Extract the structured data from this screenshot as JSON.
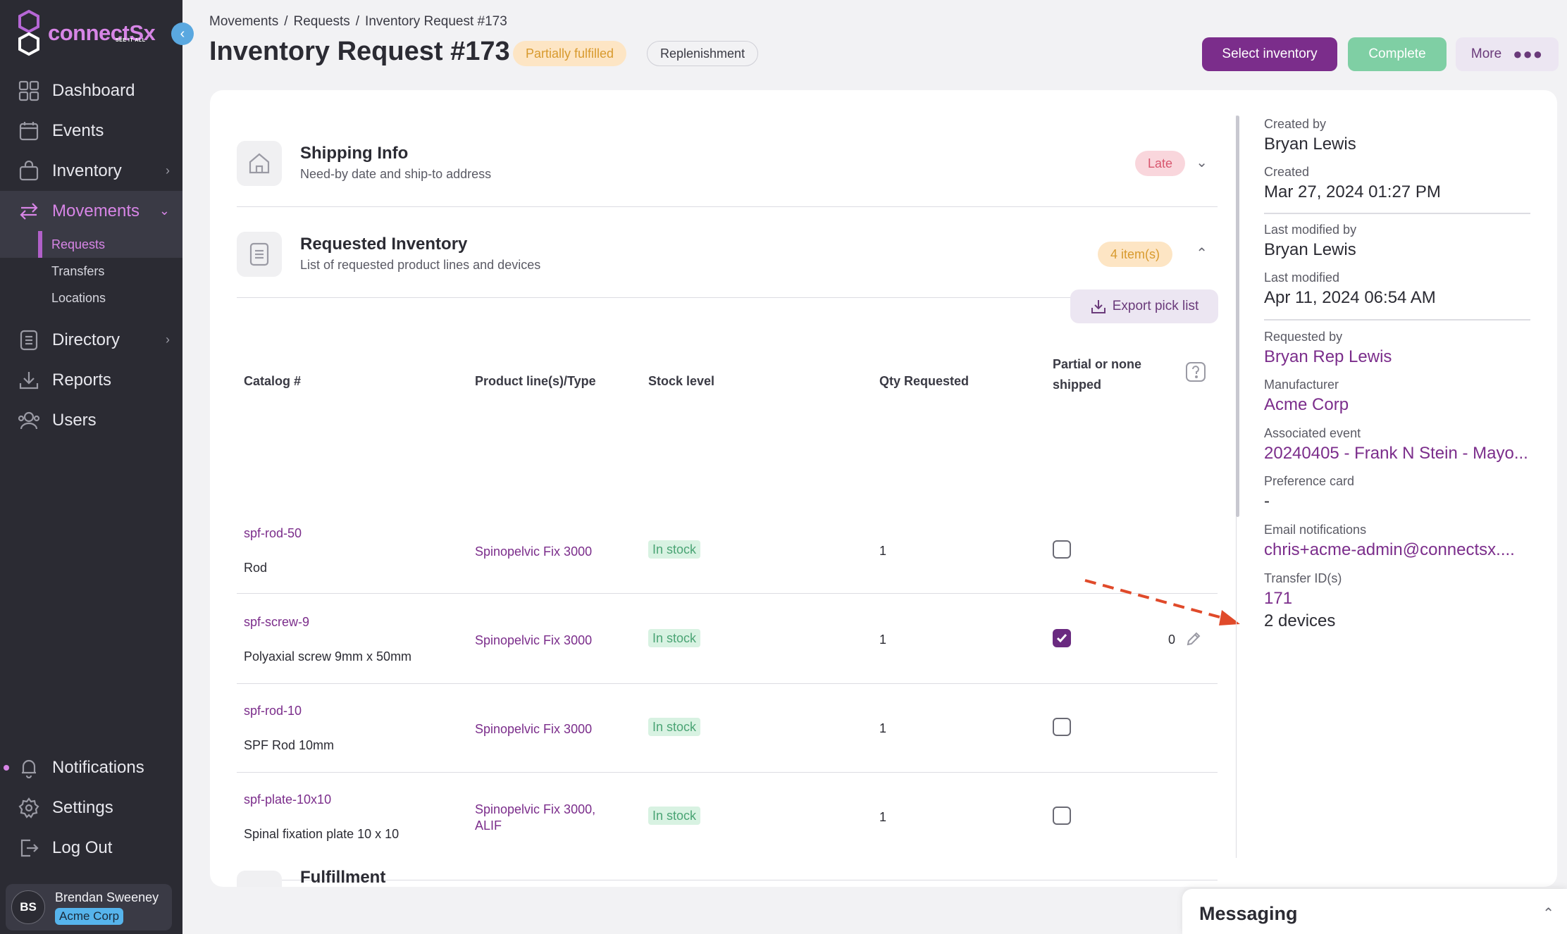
{
  "brand": {
    "name": "connectSx",
    "tagline": "SEE IT ALL"
  },
  "sidebar": {
    "items": [
      {
        "label": "Dashboard",
        "icon": "grid-icon"
      },
      {
        "label": "Events",
        "icon": "calendar-icon"
      },
      {
        "label": "Inventory",
        "icon": "bag-icon"
      },
      {
        "label": "Movements",
        "icon": "transfer-arrows-icon"
      },
      {
        "label": "Directory",
        "icon": "document-icon"
      },
      {
        "label": "Reports",
        "icon": "download-icon"
      },
      {
        "label": "Users",
        "icon": "users-icon"
      }
    ],
    "sub_items": [
      {
        "label": "Requests"
      },
      {
        "label": "Transfers"
      },
      {
        "label": "Locations"
      }
    ],
    "bottom": [
      {
        "label": "Notifications",
        "icon": "bell-icon"
      },
      {
        "label": "Settings",
        "icon": "gear-icon"
      },
      {
        "label": "Log Out",
        "icon": "logout-icon"
      }
    ],
    "user": {
      "initials": "BS",
      "name": "Brendan Sweeney",
      "org": "Acme Corp"
    }
  },
  "breadcrumb": [
    "Movements",
    "/",
    "Requests",
    "/",
    "Inventory Request #173"
  ],
  "header": {
    "title": "Inventory Request #173",
    "status_badge": "Partially fulfilled",
    "type_badge": "Replenishment",
    "select_inventory": "Select inventory",
    "complete": "Complete",
    "more": "More"
  },
  "shipping": {
    "title": "Shipping Info",
    "subtitle": "Need-by date and ship-to address",
    "badge": "Late"
  },
  "requested": {
    "title": "Requested Inventory",
    "subtitle": "List of requested product lines and devices",
    "badge": "4 item(s)",
    "export": "Export pick list"
  },
  "table": {
    "headers": {
      "catalog": "Catalog #",
      "product": "Product line(s)/Type",
      "stock": "Stock level",
      "qty": "Qty Requested",
      "partial_1": "Partial or none",
      "partial_2": "shipped"
    },
    "rows": [
      {
        "catalog": "spf-rod-50",
        "desc": "Rod",
        "product": "Spinopelvic Fix 3000",
        "product_2": "",
        "stock": "In stock",
        "qty": "1",
        "checked": false,
        "shipped": ""
      },
      {
        "catalog": "spf-screw-9",
        "desc": "Polyaxial screw 9mm x 50mm",
        "product": "Spinopelvic Fix 3000",
        "product_2": "",
        "stock": "In stock",
        "qty": "1",
        "checked": true,
        "shipped": "0"
      },
      {
        "catalog": "spf-rod-10",
        "desc": "SPF Rod 10mm",
        "product": "Spinopelvic Fix 3000",
        "product_2": "",
        "stock": "In stock",
        "qty": "1",
        "checked": false,
        "shipped": ""
      },
      {
        "catalog": "spf-plate-10x10",
        "desc": "Spinal fixation plate 10 x 10",
        "product": "Spinopelvic Fix 3000,",
        "product_2": "ALIF",
        "stock": "In stock",
        "qty": "1",
        "checked": false,
        "shipped": ""
      }
    ]
  },
  "fulfillment": {
    "title": "Fulfillment"
  },
  "details": {
    "created_by_label": "Created by",
    "created_by": "Bryan Lewis",
    "created_label": "Created",
    "created": "Mar 27, 2024 01:27 PM",
    "modified_by_label": "Last modified by",
    "modified_by": "Bryan Lewis",
    "modified_label": "Last modified",
    "modified": "Apr 11, 2024 06:54 AM",
    "requested_by_label": "Requested by",
    "requested_by": "Bryan Rep Lewis",
    "manufacturer_label": "Manufacturer",
    "manufacturer": "Acme Corp",
    "event_label": "Associated event",
    "event": "20240405 - Frank N Stein - Mayo...",
    "pref_card_label": "Preference card",
    "pref_card": "-",
    "email_label": "Email notifications",
    "email": "chris+acme-admin@connectsx....",
    "transfer_label": "Transfer ID(s)",
    "transfer_id": "171",
    "transfer_devices": "2 devices"
  },
  "messaging": {
    "title": "Messaging"
  },
  "colors": {
    "accent": "#7b2d8b",
    "sidebar": "#2b2b33",
    "brand_pink": "#d785e6",
    "complete": "#7fcfa4"
  }
}
